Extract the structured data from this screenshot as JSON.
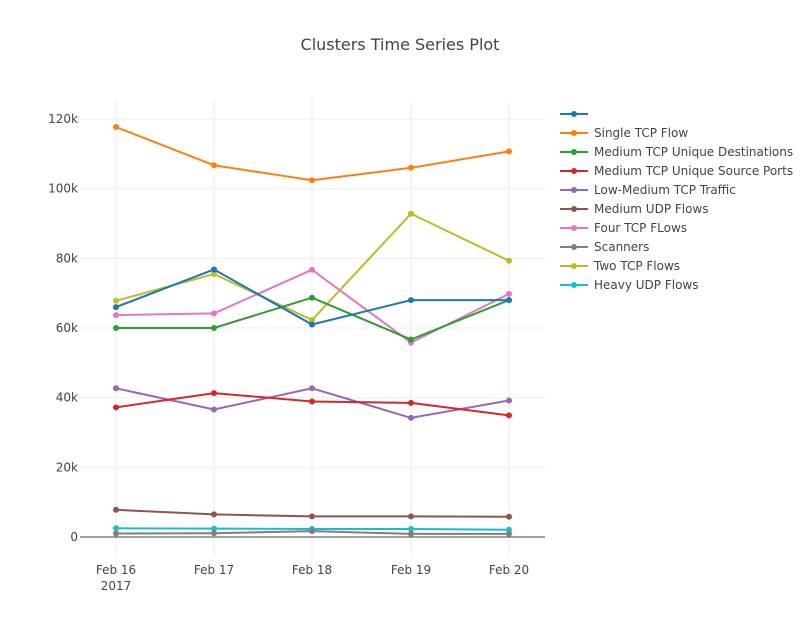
{
  "chart_data": {
    "type": "line",
    "title": "Clusters Time Series Plot",
    "categories": [
      "Feb 16",
      "Feb 17",
      "Feb 18",
      "Feb 19",
      "Feb 20"
    ],
    "x_tick_sublabels": [
      "2017",
      "",
      "",
      "",
      ""
    ],
    "ylim": [
      -6000,
      126000
    ],
    "yticks": [
      0,
      20000,
      40000,
      60000,
      80000,
      100000,
      120000
    ],
    "ytick_labels": [
      "0",
      "20k",
      "40k",
      "60k",
      "80k",
      "100k",
      "120k"
    ],
    "grid": true,
    "legend_position": "right",
    "series": [
      {
        "name": "",
        "color": "#1f77b4",
        "values": [
          66000,
          76800,
          61000,
          68000,
          68000
        ]
      },
      {
        "name": "Single TCP Flow",
        "color": "#ff7f0e",
        "values": [
          117700,
          106700,
          102400,
          106000,
          110700
        ]
      },
      {
        "name": "Medium TCP Unique Destinations",
        "color": "#2ca02c",
        "values": [
          60000,
          60000,
          68700,
          56700,
          68000
        ]
      },
      {
        "name": "Medium TCP Unique Source Ports",
        "color": "#d62728",
        "values": [
          37200,
          41300,
          38900,
          38500,
          34900
        ]
      },
      {
        "name": "Low-Medium TCP Traffic",
        "color": "#9467bd",
        "values": [
          42700,
          36600,
          42700,
          34200,
          39200
        ]
      },
      {
        "name": "Medium UDP Flows",
        "color": "#8c564b",
        "values": [
          7800,
          6500,
          5900,
          5900,
          5800
        ]
      },
      {
        "name": "Four TCP FLows",
        "color": "#e377c2",
        "values": [
          63700,
          64200,
          76700,
          55800,
          69800
        ]
      },
      {
        "name": "Scanners",
        "color": "#7f7f7f",
        "values": [
          1000,
          1100,
          1700,
          900,
          900
        ]
      },
      {
        "name": "Two TCP Flows",
        "color": "#bcbd22",
        "values": [
          67800,
          75500,
          62300,
          92800,
          79300
        ]
      },
      {
        "name": "Heavy UDP Flows",
        "color": "#17becf",
        "values": [
          2500,
          2400,
          2300,
          2300,
          2100
        ]
      }
    ]
  }
}
